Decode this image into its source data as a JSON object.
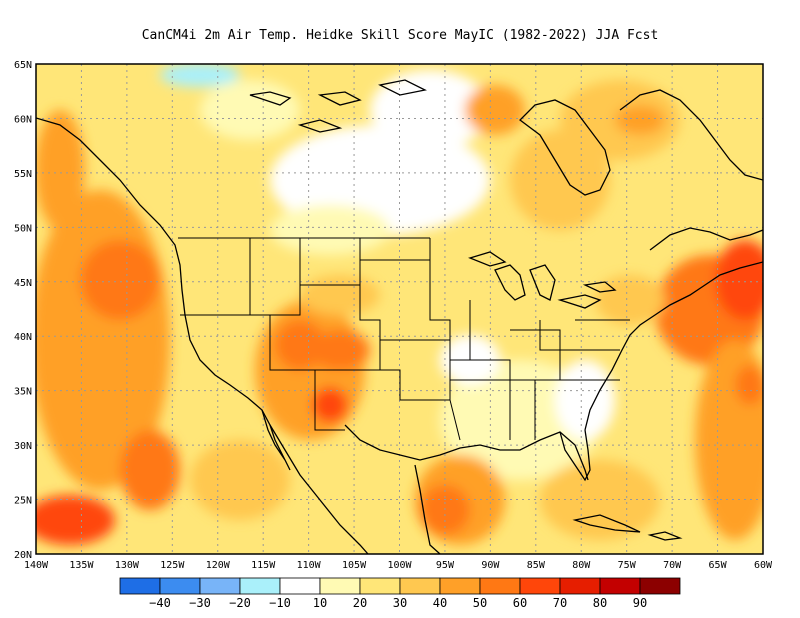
{
  "title": "CanCM4i  2m Air Temp. Heidke Skill Score MayIC (1982-2022) JJA Fcst",
  "map": {
    "lon_range": [
      -140,
      -60
    ],
    "lat_range": [
      20,
      65
    ],
    "lon_labels": [
      "140W",
      "135W",
      "130W",
      "125W",
      "120W",
      "115W",
      "110W",
      "105W",
      "100W",
      "95W",
      "90W",
      "85W",
      "80W",
      "75W",
      "70W",
      "65W",
      "60W"
    ],
    "lat_labels": [
      "20N",
      "25N",
      "30N",
      "35N",
      "40N",
      "45N",
      "50N",
      "55N",
      "60N",
      "65N"
    ]
  },
  "colorbar": {
    "colors": [
      "#1e6ee6",
      "#3c8cf0",
      "#78b4f8",
      "#aaf0fa",
      "#ffffff",
      "#fffab4",
      "#ffe678",
      "#ffc850",
      "#ffa028",
      "#ff7814",
      "#ff460a",
      "#e61e00",
      "#c30000",
      "#8c0000"
    ],
    "labels": [
      "−40",
      "−30",
      "−20",
      "−10",
      "10",
      "20",
      "30",
      "40",
      "50",
      "60",
      "70",
      "80",
      "90"
    ]
  }
}
